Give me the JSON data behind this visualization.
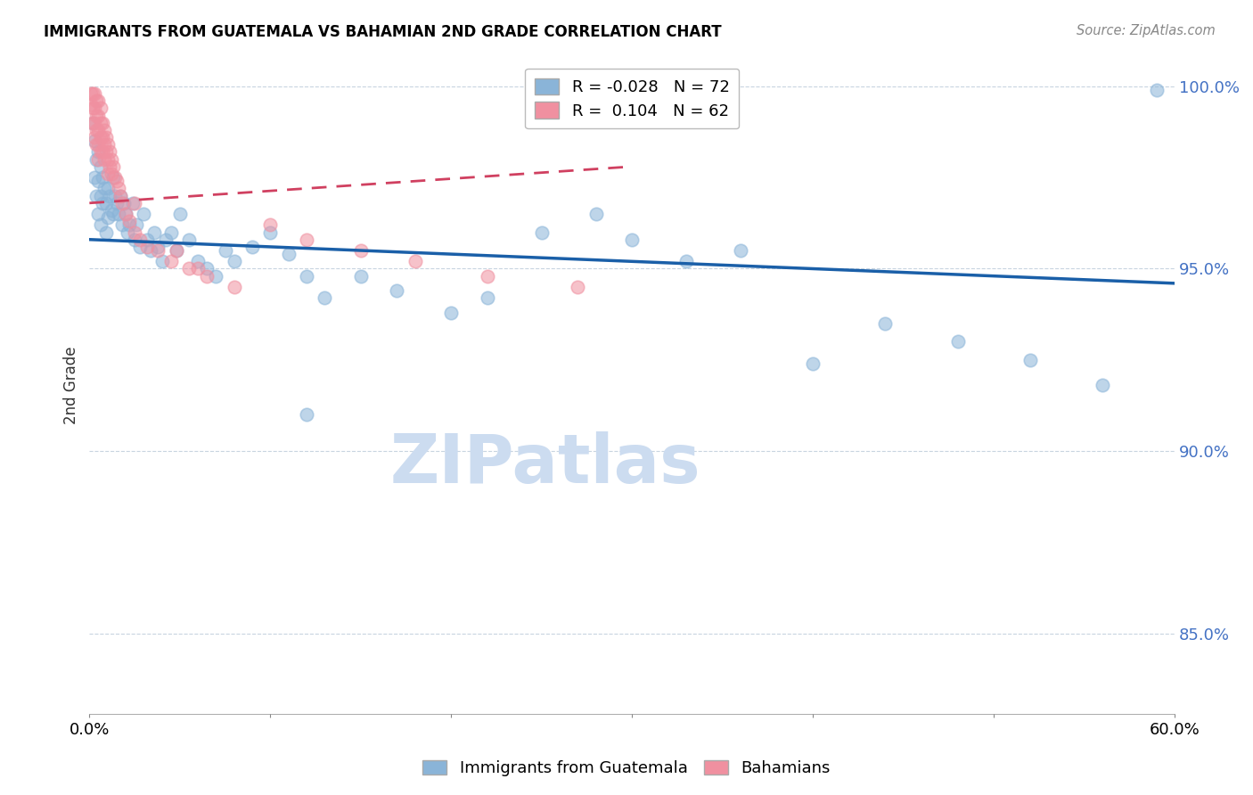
{
  "title": "IMMIGRANTS FROM GUATEMALA VS BAHAMIAN 2ND GRADE CORRELATION CHART",
  "source": "Source: ZipAtlas.com",
  "ylabel": "2nd Grade",
  "xlabel_blue": "Immigrants from Guatemala",
  "xlabel_pink": "Bahamians",
  "x_min": 0.0,
  "x_max": 0.6,
  "y_min": 0.828,
  "y_max": 1.008,
  "yticks": [
    0.85,
    0.9,
    0.95,
    1.0
  ],
  "ytick_labels": [
    "85.0%",
    "90.0%",
    "95.0%",
    "100.0%"
  ],
  "R_blue": -0.028,
  "N_blue": 72,
  "R_pink": 0.104,
  "N_pink": 62,
  "blue_color": "#8ab4d8",
  "pink_color": "#f090a0",
  "trend_blue_color": "#1a5fa8",
  "trend_pink_color": "#d04060",
  "watermark": "ZIPatlas",
  "watermark_color": "#ccdcf0",
  "blue_trend_x": [
    0.0,
    0.6
  ],
  "blue_trend_y": [
    0.958,
    0.946
  ],
  "pink_trend_x": [
    0.0,
    0.3
  ],
  "pink_trend_y": [
    0.968,
    0.978
  ],
  "blue_scatter_x": [
    0.002,
    0.003,
    0.003,
    0.004,
    0.004,
    0.005,
    0.005,
    0.005,
    0.006,
    0.006,
    0.006,
    0.007,
    0.007,
    0.008,
    0.009,
    0.009,
    0.01,
    0.01,
    0.011,
    0.012,
    0.013,
    0.013,
    0.014,
    0.015,
    0.016,
    0.017,
    0.018,
    0.019,
    0.02,
    0.021,
    0.022,
    0.024,
    0.025,
    0.026,
    0.028,
    0.03,
    0.032,
    0.034,
    0.036,
    0.038,
    0.04,
    0.042,
    0.045,
    0.048,
    0.05,
    0.055,
    0.06,
    0.065,
    0.07,
    0.075,
    0.08,
    0.09,
    0.1,
    0.11,
    0.12,
    0.13,
    0.15,
    0.17,
    0.2,
    0.22,
    0.25,
    0.28,
    0.3,
    0.33,
    0.36,
    0.4,
    0.44,
    0.48,
    0.52,
    0.56,
    0.12,
    0.59
  ],
  "blue_scatter_y": [
    0.99,
    0.985,
    0.975,
    0.98,
    0.97,
    0.982,
    0.974,
    0.965,
    0.978,
    0.97,
    0.962,
    0.975,
    0.968,
    0.972,
    0.968,
    0.96,
    0.972,
    0.964,
    0.97,
    0.966,
    0.975,
    0.965,
    0.97,
    0.968,
    0.965,
    0.97,
    0.962,
    0.968,
    0.965,
    0.96,
    0.962,
    0.968,
    0.958,
    0.962,
    0.956,
    0.965,
    0.958,
    0.955,
    0.96,
    0.956,
    0.952,
    0.958,
    0.96,
    0.955,
    0.965,
    0.958,
    0.952,
    0.95,
    0.948,
    0.955,
    0.952,
    0.956,
    0.96,
    0.954,
    0.948,
    0.942,
    0.948,
    0.944,
    0.938,
    0.942,
    0.96,
    0.965,
    0.958,
    0.952,
    0.955,
    0.924,
    0.935,
    0.93,
    0.925,
    0.918,
    0.91,
    0.999
  ],
  "pink_scatter_x": [
    0.001,
    0.001,
    0.002,
    0.002,
    0.002,
    0.003,
    0.003,
    0.003,
    0.003,
    0.004,
    0.004,
    0.004,
    0.004,
    0.005,
    0.005,
    0.005,
    0.005,
    0.005,
    0.006,
    0.006,
    0.006,
    0.006,
    0.007,
    0.007,
    0.007,
    0.008,
    0.008,
    0.008,
    0.009,
    0.009,
    0.01,
    0.01,
    0.01,
    0.011,
    0.011,
    0.012,
    0.012,
    0.013,
    0.014,
    0.015,
    0.016,
    0.017,
    0.018,
    0.02,
    0.022,
    0.025,
    0.028,
    0.032,
    0.038,
    0.045,
    0.055,
    0.065,
    0.08,
    0.1,
    0.12,
    0.15,
    0.18,
    0.22,
    0.27,
    0.025,
    0.048,
    0.06
  ],
  "pink_scatter_y": [
    0.998,
    0.995,
    0.998,
    0.994,
    0.99,
    0.998,
    0.994,
    0.99,
    0.986,
    0.996,
    0.992,
    0.988,
    0.984,
    0.996,
    0.992,
    0.988,
    0.984,
    0.98,
    0.994,
    0.99,
    0.986,
    0.982,
    0.99,
    0.986,
    0.982,
    0.988,
    0.984,
    0.98,
    0.986,
    0.982,
    0.984,
    0.98,
    0.976,
    0.982,
    0.978,
    0.98,
    0.976,
    0.978,
    0.975,
    0.974,
    0.972,
    0.97,
    0.968,
    0.965,
    0.963,
    0.96,
    0.958,
    0.956,
    0.955,
    0.952,
    0.95,
    0.948,
    0.945,
    0.962,
    0.958,
    0.955,
    0.952,
    0.948,
    0.945,
    0.968,
    0.955,
    0.95
  ]
}
